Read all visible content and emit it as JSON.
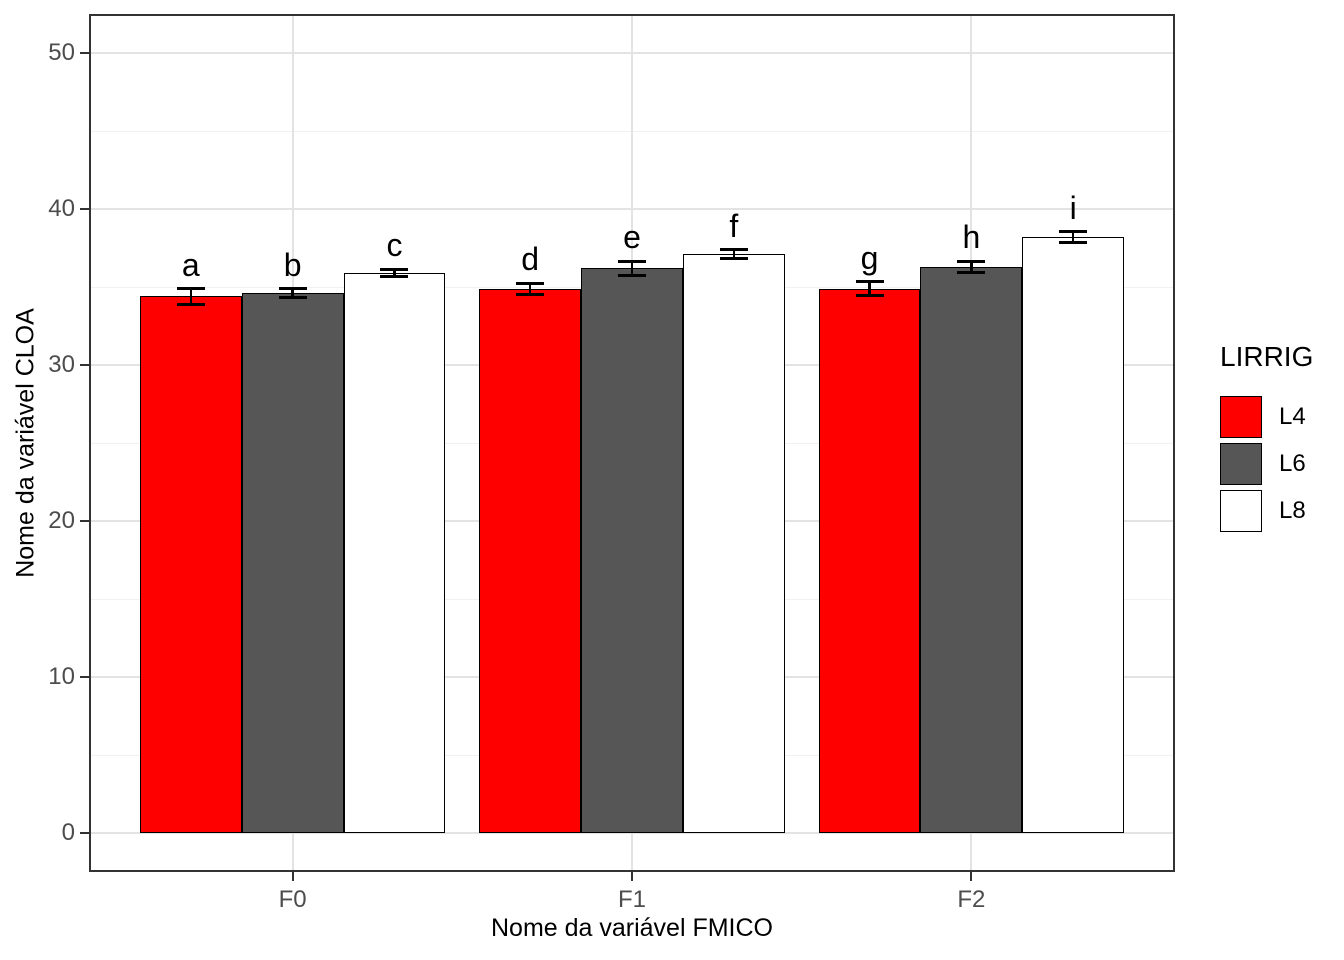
{
  "figure": {
    "background": "#FFFFFF",
    "panel_border_color": "#333333",
    "grid_major_color": "#E3E3E3",
    "grid_minor_color": "#F1F1F1",
    "tick_color": "#333333",
    "tick_label_color": "#4D4D4D",
    "text_color": "#000000"
  },
  "chart_data": {
    "type": "bar",
    "title": "",
    "xlabel": "Nome da variável FMICO",
    "ylabel": "Nome da variável CLOA",
    "categories": [
      "F0",
      "F1",
      "F2"
    ],
    "series": [
      {
        "name": "L4",
        "color": "#FF0000",
        "values": [
          34.4,
          34.9,
          34.9
        ],
        "errors": [
          0.5,
          0.35,
          0.45
        ],
        "point_labels": [
          "a",
          "d",
          "g"
        ]
      },
      {
        "name": "L6",
        "color": "#565656",
        "values": [
          34.6,
          36.2,
          36.3
        ],
        "errors": [
          0.3,
          0.45,
          0.35
        ],
        "point_labels": [
          "b",
          "e",
          "h"
        ]
      },
      {
        "name": "L8",
        "color": "#FFFFFF",
        "values": [
          35.9,
          37.1,
          38.2
        ],
        "errors": [
          0.25,
          0.3,
          0.35
        ],
        "point_labels": [
          "c",
          "f",
          "i"
        ]
      }
    ],
    "ylim": [
      0,
      50
    ],
    "yticks": [
      "0",
      "10",
      "20",
      "30",
      "40",
      "50"
    ],
    "ytick_values": [
      0,
      10,
      20,
      30,
      40,
      50
    ],
    "yminor_values": [
      5,
      15,
      25,
      35,
      45
    ],
    "grid": {
      "horizontal_major": true,
      "horizontal_minor": true,
      "vertical_major_at_categories": true
    },
    "bar_style": {
      "border_color": "#000000",
      "dodged": true,
      "error_bars": true
    },
    "legend": {
      "title": "LIRRIG",
      "position": "right",
      "entries": [
        {
          "label": "L4",
          "color": "#FF0000"
        },
        {
          "label": "L6",
          "color": "#565656"
        },
        {
          "label": "L8",
          "color": "#FFFFFF"
        }
      ]
    }
  }
}
